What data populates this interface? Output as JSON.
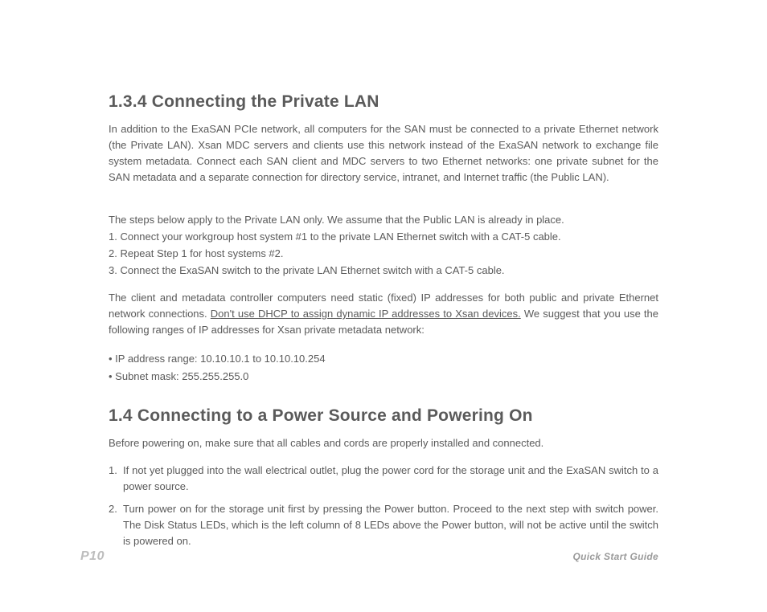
{
  "typography": {
    "heading_font": "Century Gothic / Futura",
    "heading_fontsize_pt": 16,
    "heading_weight": 700,
    "body_font": "Arial",
    "body_fontsize_pt": 10,
    "body_color": "#5a5a5a",
    "page_number_color": "#bdbdbd",
    "guide_label_color": "#9a9a9a",
    "background_color": "#ffffff"
  },
  "section1": {
    "heading": "1.3.4 Connecting the Private LAN",
    "intro": "In addition to the ExaSAN PCIe network, all computers for the SAN must be connected to a private Ethernet network (the Private LAN). Xsan MDC servers and clients use this network instead of the ExaSAN network to exchange file system metadata. Connect each SAN client and MDC servers to two Ethernet networks: one private subnet for the SAN metadata and a separate connection for directory service, intranet, and Internet traffic (the Public LAN).",
    "steps_intro": "The steps below apply to the Private LAN only. We assume that the Public LAN is already in place.",
    "steps": [
      "1. Connect your workgroup host system #1 to the private LAN Ethernet switch with a CAT-5 cable.",
      "2. Repeat Step 1 for host systems #2.",
      "3. Connect the ExaSAN switch to the private LAN Ethernet switch with a CAT-5 cable."
    ],
    "ip_para_before": "The client and metadata controller computers need static (fixed) IP addresses for both public and private Ethernet network connections. ",
    "ip_para_underlined": "Don't use DHCP to assign dynamic IP addresses to Xsan devices.",
    "ip_para_after": " We suggest that you use the following ranges of IP addresses for Xsan private metadata network:",
    "bullets": [
      "• IP address range: 10.10.10.1 to 10.10.10.254",
      "• Subnet mask: 255.255.255.0"
    ]
  },
  "section2": {
    "heading": "1.4 Connecting to a Power Source and Powering On",
    "intro": "Before powering on, make sure that all cables and cords are properly installed and connected.",
    "numbered": [
      {
        "n": "1.",
        "t": "If not yet plugged into the wall electrical outlet, plug the power cord for the storage unit and the ExaSAN switch to a power source."
      },
      {
        "n": "2.",
        "t": "Turn power on for the storage unit first by pressing the Power button. Proceed to the next step with switch power. The Disk Status LEDs, which is the left column of 8 LEDs above the Power button, will not be active until the switch is powered on."
      }
    ]
  },
  "footer": {
    "page_number": "P10",
    "guide_label": "Quick Start Guide"
  }
}
